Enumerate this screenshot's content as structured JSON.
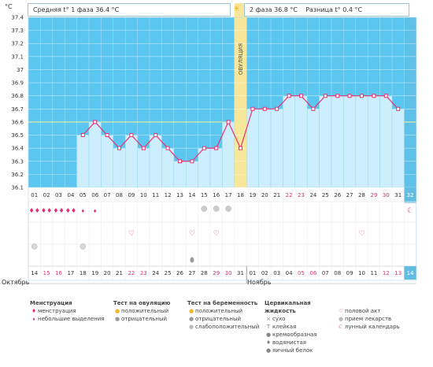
{
  "header": {
    "y_unit": "°C",
    "phase1_label": "Средняя t° 1 фаза",
    "phase1_value": "36.4 °C",
    "phase2_label": "2 фаза",
    "phase2_value": "36.8 °C",
    "diff_label": "Разница t°",
    "diff_value": "0.4 °C",
    "sun_icon": "sun-icon"
  },
  "ovulation_label": "ОВУЛЯЦИЯ",
  "month_labels": {
    "first": "Октябрь",
    "second": "Ноябрь"
  },
  "top_days": [
    "01",
    "02",
    "03",
    "04",
    "05",
    "06",
    "07",
    "08",
    "09",
    "10",
    "11",
    "12",
    "13",
    "14",
    "15",
    "16",
    "17",
    "18",
    "19",
    "20",
    "21",
    "22",
    "23",
    "24",
    "25",
    "26",
    "27",
    "28",
    "29",
    "30",
    "31",
    "32"
  ],
  "bottom_days": [
    "14",
    "15",
    "16",
    "17",
    "18",
    "19",
    "20",
    "21",
    "22",
    "23",
    "24",
    "25",
    "26",
    "27",
    "28",
    "29",
    "30",
    "31",
    "01",
    "02",
    "03",
    "04",
    "05",
    "06",
    "07",
    "08",
    "09",
    "10",
    "11",
    "12",
    "13",
    "14"
  ],
  "colors": {
    "bg_blue": "#5bc6f0",
    "bar_fill": "#cdeefc",
    "line": "#e8336f",
    "weekend_red": "#e0307a",
    "ovulation": "#f7e79a",
    "today_cell": "#62bde3",
    "mid_line": "#e6f0a0"
  },
  "chart_data": {
    "type": "line",
    "y_unit": "°C",
    "ylim": [
      36.1,
      37.4
    ],
    "y_ticks": [
      "37.4",
      "37.3",
      "37.2",
      "37.1",
      "37",
      "36.9",
      "36.8",
      "36.7",
      "36.6",
      "36.5",
      "36.4",
      "36.3",
      "36.2",
      "36.1"
    ],
    "x": [
      "05",
      "06",
      "07",
      "08",
      "09",
      "10",
      "11",
      "12",
      "13",
      "14",
      "15",
      "16",
      "17",
      "18",
      "19",
      "20",
      "21",
      "22",
      "23",
      "24",
      "25",
      "26",
      "27",
      "28",
      "29",
      "30",
      "31"
    ],
    "values": [
      36.5,
      36.6,
      36.5,
      36.4,
      36.5,
      36.4,
      36.5,
      36.4,
      36.3,
      36.3,
      36.4,
      36.4,
      36.6,
      36.4,
      36.7,
      36.7,
      36.7,
      36.8,
      36.8,
      36.7,
      36.8,
      36.8,
      36.8,
      36.8,
      36.8,
      36.8,
      36.7
    ],
    "cover_line": 36.6,
    "ovulation_day": "18"
  },
  "marks": {
    "menstruation": [
      0,
      1,
      2,
      3,
      4,
      5
    ],
    "menstruation_small": [
      4,
      5
    ],
    "ovulation_test": [
      14,
      15,
      16
    ],
    "intercourse": [
      8,
      13,
      15,
      27
    ],
    "medication": [
      0,
      4
    ],
    "discharge_water": [
      13
    ],
    "today_col": 31
  },
  "legend": {
    "menstruation": {
      "title": "Менструация",
      "items": [
        "менструация",
        "небольшие выделения"
      ]
    },
    "ovulation_test": {
      "title": "Тест на овуляцию",
      "items": [
        "положительный",
        "отрицательный"
      ]
    },
    "pregnancy_test": {
      "title": "Тест на беременность",
      "items": [
        "положительный",
        "отрицательный",
        "слабоположительный"
      ]
    },
    "cervical": {
      "title": "Цервикальная жидкость",
      "items": [
        "сухо",
        "клейкая",
        "кремообразная",
        "водянистая",
        "яичный белок"
      ]
    },
    "other": {
      "items": [
        "половой акт",
        "прием лекарств",
        "лунный календарь"
      ]
    }
  }
}
